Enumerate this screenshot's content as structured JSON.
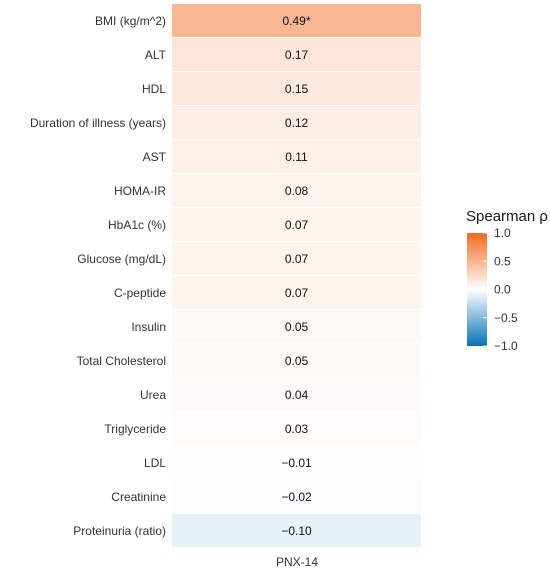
{
  "chart_data": {
    "type": "heatmap",
    "columns": [
      "PNX-14"
    ],
    "rows": [
      {
        "label": "BMI (kg/m^2)",
        "value": 0.49,
        "text": "0.49*"
      },
      {
        "label": "ALT",
        "value": 0.17,
        "text": "0.17"
      },
      {
        "label": "HDL",
        "value": 0.15,
        "text": "0.15"
      },
      {
        "label": "Duration of illness (years)",
        "value": 0.12,
        "text": "0.12"
      },
      {
        "label": "AST",
        "value": 0.11,
        "text": "0.11"
      },
      {
        "label": "HOMA-IR",
        "value": 0.08,
        "text": "0.08"
      },
      {
        "label": "HbA1c (%)",
        "value": 0.07,
        "text": "0.07"
      },
      {
        "label": "Glucose (mg/dL)",
        "value": 0.07,
        "text": "0.07"
      },
      {
        "label": "C-peptide",
        "value": 0.07,
        "text": "0.07"
      },
      {
        "label": "Insulin",
        "value": 0.05,
        "text": "0.05"
      },
      {
        "label": "Total Cholesterol",
        "value": 0.05,
        "text": "0.05"
      },
      {
        "label": "Urea",
        "value": 0.04,
        "text": "0.04"
      },
      {
        "label": "Triglyceride",
        "value": 0.03,
        "text": "0.03"
      },
      {
        "label": "LDL",
        "value": -0.01,
        "text": "−0.01"
      },
      {
        "label": "Creatinine",
        "value": -0.02,
        "text": "−0.02"
      },
      {
        "label": "Proteinuria (ratio)",
        "value": -0.1,
        "text": "−0.10"
      }
    ],
    "legend": {
      "title": "Spearman ρ",
      "range": [
        -1,
        1
      ],
      "ticks": [
        {
          "value": 1.0,
          "label": "1.0"
        },
        {
          "value": 0.5,
          "label": "0.5"
        },
        {
          "value": 0.0,
          "label": "0.0"
        },
        {
          "value": -0.5,
          "label": "−0.5"
        },
        {
          "value": -1.0,
          "label": "−1.0"
        }
      ],
      "colors": {
        "low": "#0a72b8",
        "mid": "#ffffff",
        "high": "#f26b21"
      }
    },
    "grid": false
  }
}
